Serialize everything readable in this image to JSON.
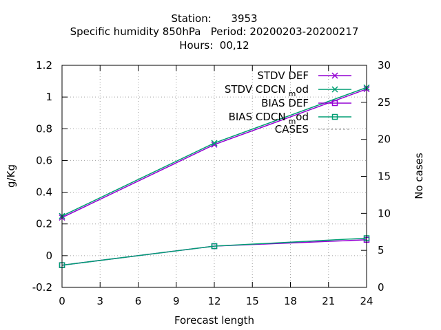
{
  "chart_data": {
    "type": "line",
    "title_lines": [
      "Station:      3953",
      "Specific humidity 850hPa   Period: 20200203-20200217",
      "Hours:  00,12"
    ],
    "xlabel": "Forecast length",
    "ylabel": "g/Kg",
    "y2label": "No cases",
    "xlim": [
      0,
      24
    ],
    "ylim": [
      -0.2,
      1.2
    ],
    "y2lim": [
      0,
      30
    ],
    "xticks": [
      0,
      3,
      6,
      9,
      12,
      15,
      18,
      21,
      24
    ],
    "yticks": [
      -0.2,
      0,
      0.2,
      0.4,
      0.6,
      0.8,
      1,
      1.2
    ],
    "yticklabels": [
      "-0.2",
      "0",
      "0.2",
      "0.4",
      "0.6",
      "0.8",
      "1",
      "1.2"
    ],
    "y2ticks": [
      0,
      5,
      10,
      15,
      20,
      25,
      30
    ],
    "grid": true,
    "legend_position": "top-right",
    "series": [
      {
        "name": "STDV DEF",
        "name_base": "STDV DEF",
        "name_sub": "",
        "name_tail": "",
        "color": "#9400d3",
        "marker": "x",
        "axis": "y",
        "x": [
          0,
          12,
          24
        ],
        "values": [
          0.24,
          0.7,
          1.05
        ]
      },
      {
        "name": "STDV CDCN mod",
        "name_base": "STDV CDCN",
        "name_sub": "m",
        "name_tail": "od",
        "color": "#009e73",
        "marker": "x",
        "axis": "y",
        "x": [
          0,
          12,
          24
        ],
        "values": [
          0.25,
          0.71,
          1.06
        ]
      },
      {
        "name": "BIAS DEF",
        "name_base": "BIAS DEF",
        "name_sub": "",
        "name_tail": "",
        "color": "#9400d3",
        "marker": "square",
        "axis": "y",
        "x": [
          0,
          12,
          24
        ],
        "values": [
          -0.06,
          0.06,
          0.1
        ]
      },
      {
        "name": "BIAS CDCN mod",
        "name_base": "BIAS CDCN",
        "name_sub": "m",
        "name_tail": "od",
        "color": "#009e73",
        "marker": "square",
        "axis": "y",
        "x": [
          0,
          12,
          24
        ],
        "values": [
          -0.06,
          0.06,
          0.11
        ]
      },
      {
        "name": "CASES",
        "name_base": "CASES",
        "name_sub": "",
        "name_tail": "",
        "color": "#888888",
        "marker": "none",
        "dash": true,
        "axis": "y2",
        "x": [
          0,
          12,
          24
        ],
        "values": [
          30,
          30,
          30
        ]
      }
    ]
  }
}
